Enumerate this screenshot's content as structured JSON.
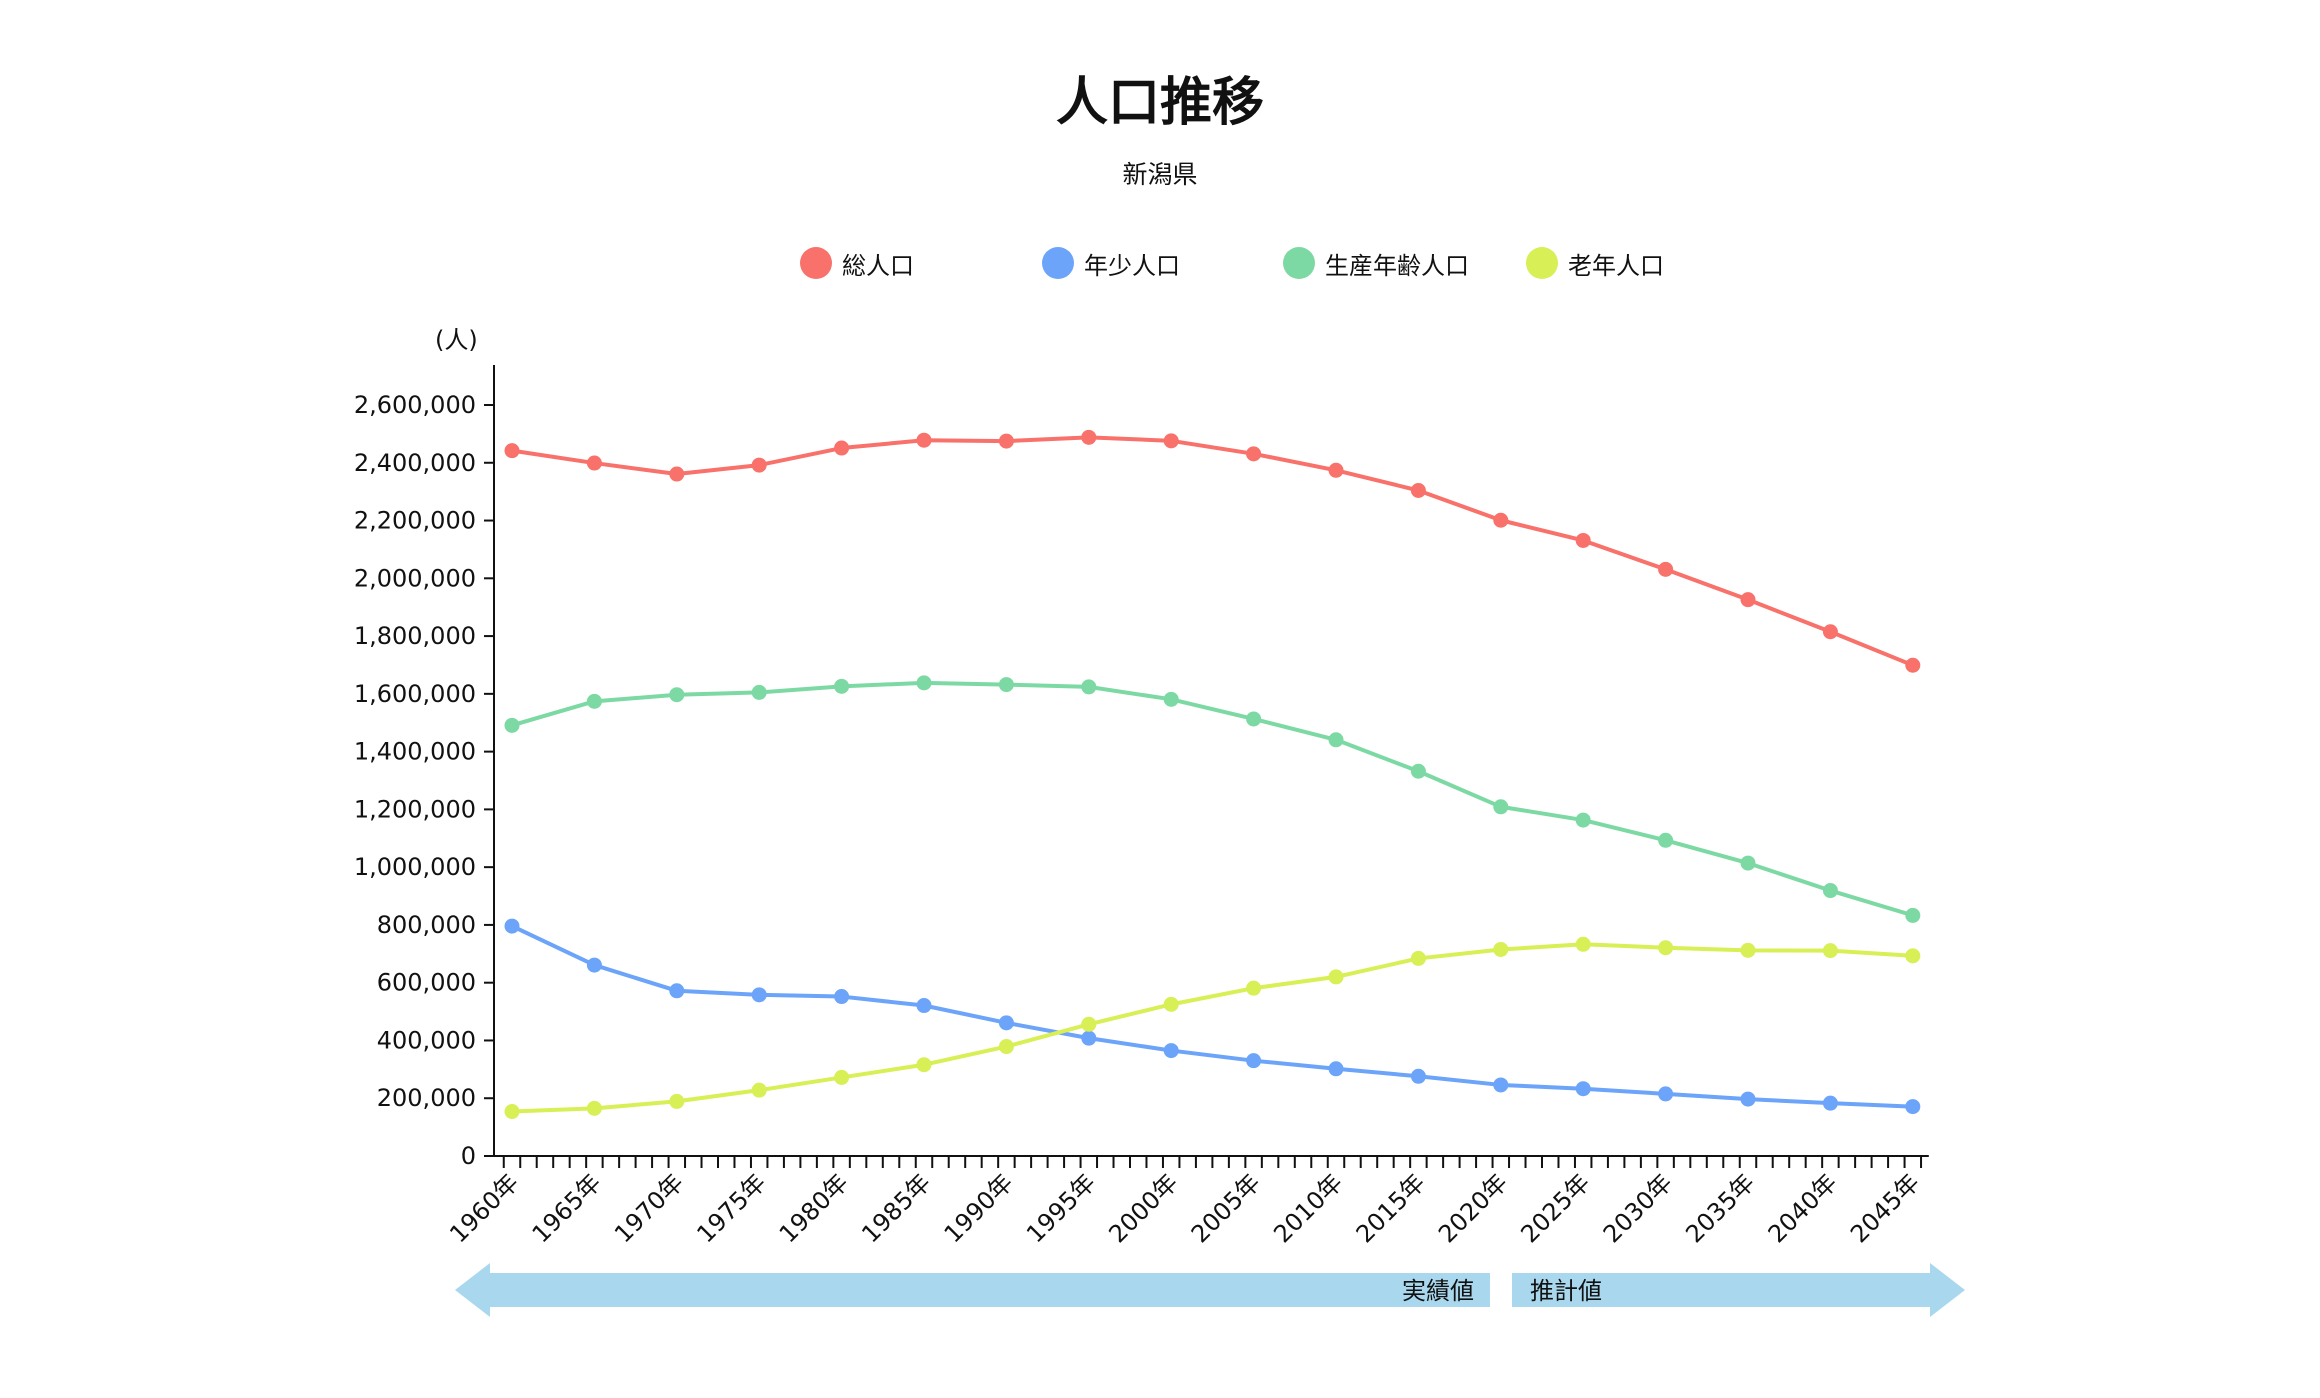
{
  "chart_data": {
    "type": "line",
    "title": "人口推移",
    "subtitle": "新潟県",
    "ylabel": "(人)",
    "ylim": [
      0,
      2600000
    ],
    "yticks": [
      0,
      200000,
      400000,
      600000,
      800000,
      1000000,
      1200000,
      1400000,
      1600000,
      1800000,
      2000000,
      2200000,
      2400000,
      2600000
    ],
    "ytick_labels": [
      "0",
      "200,000",
      "400,000",
      "600,000",
      "800,000",
      "1,000,000",
      "1,200,000",
      "1,400,000",
      "1,600,000",
      "1,800,000",
      "2,000,000",
      "2,200,000",
      "2,400,000",
      "2,600,000"
    ],
    "categories": [
      "1960年",
      "1965年",
      "1970年",
      "1975年",
      "1980年",
      "1985年",
      "1990年",
      "1995年",
      "2000年",
      "2005年",
      "2010年",
      "2015年",
      "2020年",
      "2025年",
      "2030年",
      "2035年",
      "2040年",
      "2045年"
    ],
    "legend_position": "top",
    "series": [
      {
        "name": "総人口",
        "color": "#f8716a",
        "values": [
          2442000,
          2399000,
          2361000,
          2392000,
          2451000,
          2478000,
          2475000,
          2488000,
          2476000,
          2431000,
          2374000,
          2304000,
          2201000,
          2131000,
          2031000,
          1926000,
          1815000,
          1699000
        ]
      },
      {
        "name": "年少人口",
        "color": "#6ba4f8",
        "values": [
          796000,
          661000,
          572000,
          558000,
          552000,
          521000,
          461000,
          408000,
          365000,
          330000,
          302000,
          276000,
          246000,
          233000,
          215000,
          197000,
          183000,
          171000
        ]
      },
      {
        "name": "生産年齢人口",
        "color": "#7dd9a3",
        "values": [
          1491000,
          1574000,
          1597000,
          1605000,
          1626000,
          1638000,
          1632000,
          1624000,
          1581000,
          1513000,
          1441000,
          1332000,
          1209000,
          1163000,
          1093000,
          1014000,
          919000,
          833000
        ]
      },
      {
        "name": "老年人口",
        "color": "#d8ef55",
        "values": [
          154000,
          165000,
          189000,
          228000,
          272000,
          316000,
          379000,
          456000,
          525000,
          581000,
          620000,
          684000,
          715000,
          733000,
          721000,
          712000,
          711000,
          693000
        ]
      }
    ],
    "periods": {
      "actual_label": "実績値",
      "projected_label": "推計値",
      "color": "#a9d8ee"
    }
  }
}
